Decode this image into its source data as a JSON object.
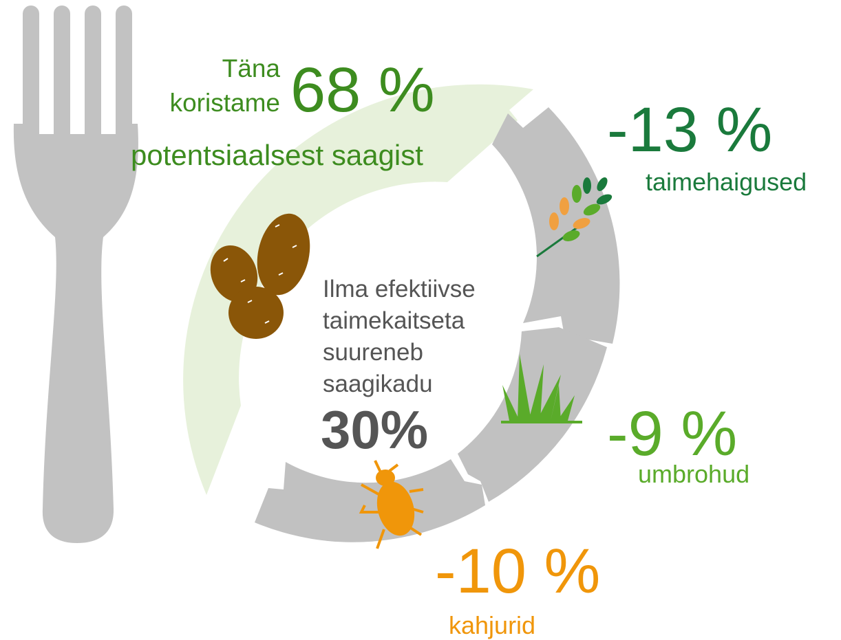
{
  "headline": {
    "prefix_1": "Täna",
    "prefix_2": "koristame",
    "value": "68 %",
    "suffix": "potentsiaalsest saagist"
  },
  "center": {
    "lines": [
      "Ilma efektiivse",
      "taimekaitseta",
      "suureneb",
      "saagikadu"
    ],
    "value": "30%"
  },
  "losses": [
    {
      "value": "-13 %",
      "label": "taimehaigused"
    },
    {
      "value": "-9 %",
      "label": "umbrohud"
    },
    {
      "value": "-10 %",
      "label": "kahjurid"
    }
  ]
}
